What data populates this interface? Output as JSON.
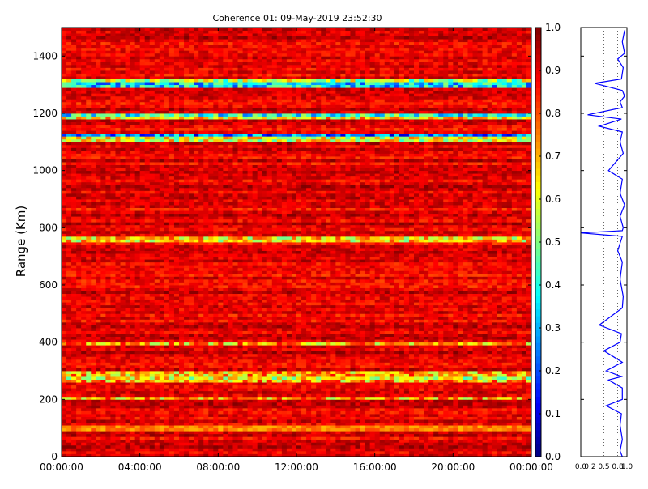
{
  "chart_data": [
    {
      "type": "heatmap",
      "title": "Coherence 01: 09-May-2019 23:52:30",
      "xlabel": "",
      "ylabel": "Range (Km)",
      "x_ticks": [
        "00:00:00",
        "04:00:00",
        "08:00:00",
        "12:00:00",
        "16:00:00",
        "20:00:00",
        "00:00:00"
      ],
      "x_range_hours": [
        0,
        24
      ],
      "y_ticks": [
        0,
        200,
        400,
        600,
        800,
        1000,
        1200,
        1400
      ],
      "ylim": [
        0,
        1500
      ],
      "colormap": "jet",
      "colorbar": {
        "ticks": [
          "0.0",
          "0.1",
          "0.2",
          "0.3",
          "0.4",
          "0.5",
          "0.6",
          "0.7",
          "0.8",
          "0.9",
          "1.0"
        ],
        "range": [
          0,
          1
        ]
      },
      "background_coherence": 0.9,
      "low_coherence_bands": [
        {
          "range_km": 1310,
          "coherence": 0.55
        },
        {
          "range_km": 1300,
          "coherence": 0.35
        },
        {
          "range_km": 1195,
          "coherence": 0.4
        },
        {
          "range_km": 1185,
          "coherence": 0.65
        },
        {
          "range_km": 1120,
          "coherence": 0.25
        },
        {
          "range_km": 1110,
          "coherence": 0.6
        },
        {
          "range_km": 760,
          "coherence": 0.65
        },
        {
          "range_km": 395,
          "coherence": 0.7
        },
        {
          "range_km": 290,
          "coherence": 0.7
        },
        {
          "range_km": 275,
          "coherence": 0.6
        },
        {
          "range_km": 265,
          "coherence": 0.7
        },
        {
          "range_km": 205,
          "coherence": 0.7
        },
        {
          "range_km": 100,
          "coherence": 0.75
        }
      ]
    },
    {
      "type": "line",
      "title": "",
      "xlabel": "",
      "ylabel": "",
      "x_ticks": [
        "0.0",
        "0.2",
        "0.5",
        "0.8",
        "1.0"
      ],
      "xlim": [
        0,
        1
      ],
      "ylim": [
        0,
        1500
      ],
      "grid": "dotted vertical",
      "color": "#0000ff",
      "series": [
        {
          "x": [
            0.95,
            0.9,
            0.95,
            0.8,
            0.92,
            0.88,
            0.3,
            0.9,
            0.95,
            0.85,
            0.9,
            0.15,
            0.88,
            0.4,
            0.9,
            0.85,
            0.92,
            0.6,
            0.9,
            0.85,
            0.95,
            0.85,
            0.92,
            0.9,
            0.0,
            0.9,
            0.8,
            0.9,
            0.85,
            0.92,
            0.9,
            0.4,
            0.88,
            0.85,
            0.5,
            0.9,
            0.55,
            0.88,
            0.6,
            0.9,
            0.9,
            0.55,
            0.88,
            0.85,
            0.9,
            0.85,
            0.9
          ],
          "y": [
            1490,
            1450,
            1410,
            1390,
            1360,
            1320,
            1305,
            1280,
            1260,
            1240,
            1220,
            1195,
            1180,
            1155,
            1135,
            1100,
            1060,
            1000,
            970,
            920,
            880,
            840,
            800,
            790,
            782,
            770,
            720,
            680,
            620,
            560,
            520,
            460,
            430,
            400,
            370,
            330,
            300,
            280,
            268,
            240,
            200,
            178,
            150,
            110,
            60,
            20,
            0
          ]
        }
      ]
    }
  ]
}
